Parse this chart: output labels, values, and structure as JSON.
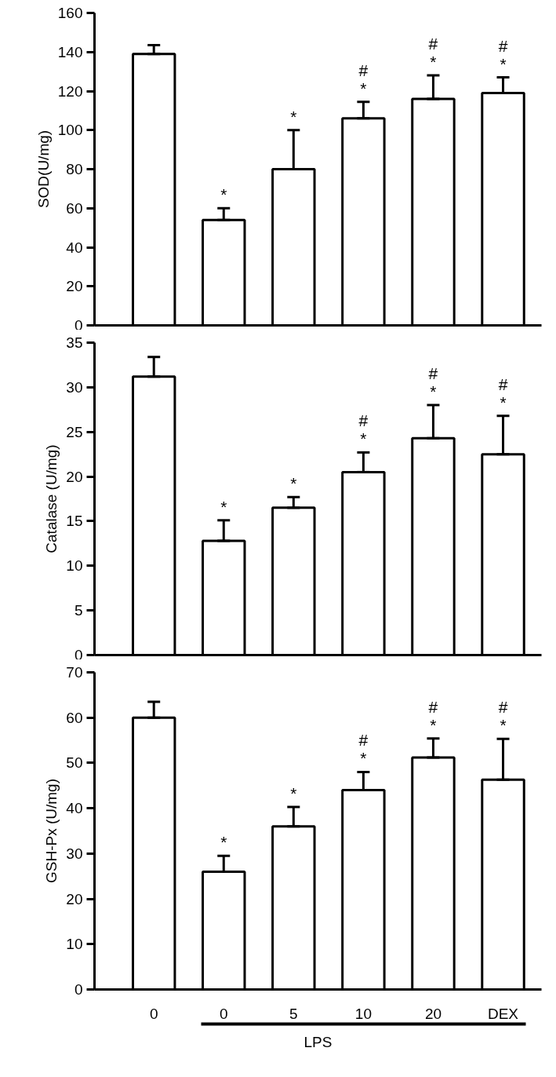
{
  "chart_data": [
    {
      "type": "bar",
      "ylabel": "SOD(U/mg)",
      "categories": [
        null,
        null,
        null,
        null,
        null,
        null
      ],
      "values": [
        139,
        54,
        80,
        106,
        116,
        119
      ],
      "errors": [
        [
          139,
          143.5
        ],
        [
          54,
          60
        ],
        [
          80,
          100
        ],
        [
          106,
          114.5
        ],
        [
          116,
          128
        ],
        [
          119,
          127
        ]
      ],
      "value_labels": [
        null,
        "*",
        "*",
        "#\n*",
        "#\n*",
        "#\n*"
      ],
      "color": "#ffffff",
      "ylim": [
        0,
        160
      ],
      "yticks": [
        0,
        20,
        40,
        60,
        80,
        100,
        120,
        140,
        160
      ],
      "grid": false
    },
    {
      "type": "bar",
      "ylabel": "Catalase (U/mg)",
      "categories": [
        null,
        null,
        null,
        null,
        null,
        null
      ],
      "values": [
        31.2,
        12.8,
        16.5,
        20.5,
        24.3,
        22.5
      ],
      "errors": [
        [
          31.2,
          33.4
        ],
        [
          12.8,
          15.1
        ],
        [
          16.5,
          17.7
        ],
        [
          20.5,
          22.7
        ],
        [
          24.3,
          28
        ],
        [
          22.5,
          26.8
        ]
      ],
      "value_labels": [
        null,
        "*",
        "*",
        "#\n*",
        "#\n*",
        "#\n*"
      ],
      "color": "#ffffff",
      "ylim": [
        0,
        35
      ],
      "yticks": [
        0,
        5,
        10,
        15,
        20,
        25,
        30,
        35
      ],
      "grid": false
    },
    {
      "type": "bar",
      "ylabel": "GSH-Px (U/mg)",
      "xlabel": "LPS",
      "categories": [
        "0",
        "0",
        "5",
        "10",
        "20",
        "DEX"
      ],
      "values": [
        60,
        26,
        36,
        44,
        51.2,
        46.3
      ],
      "errors": [
        [
          60,
          63.5
        ],
        [
          26,
          29.5
        ],
        [
          36,
          40.3
        ],
        [
          44,
          48
        ],
        [
          51.2,
          55.4
        ],
        [
          46.3,
          55.3
        ]
      ],
      "value_labels": [
        null,
        "*",
        "*",
        "#\n*",
        "#\n*",
        "#\n*"
      ],
      "color": "#ffffff",
      "ylim": [
        0,
        70
      ],
      "yticks": [
        0,
        10,
        20,
        30,
        40,
        50,
        60,
        70
      ],
      "grid": false
    }
  ]
}
